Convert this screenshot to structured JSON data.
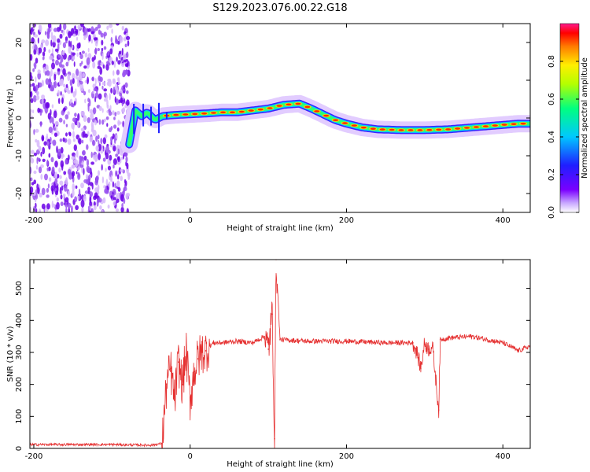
{
  "title": "S129.2023.076.00.22.G18",
  "colors": {
    "snr_line": "#e53030",
    "scatter": "#7a1fe0",
    "colormap": [
      "#ffffff",
      "#d9b8ff",
      "#7a00ff",
      "#1f1fff",
      "#00c8ff",
      "#00ff80",
      "#b4ff00",
      "#ffee00",
      "#ff7a00",
      "#ff0000",
      "#ff1a8c"
    ]
  },
  "chart_data": [
    {
      "type": "heatmap",
      "name": "spectrogram",
      "xlabel": "Height of straight line (km)",
      "ylabel": "Frequency (Hz)",
      "xlim": [
        -205,
        435
      ],
      "ylim": [
        -25,
        25
      ],
      "xticks": [
        "-200",
        "0",
        "200",
        "400"
      ],
      "yticks": [
        "20",
        "10",
        "0",
        "-10",
        "-20"
      ],
      "colorbar": {
        "label": "Normalized spectral amplitude",
        "range": [
          0,
          1
        ],
        "ticks": [
          "0.0",
          "0.2",
          "0.4",
          "0.6",
          "0.8"
        ]
      },
      "noise_region_x": [
        -205,
        -78
      ],
      "ridge": {
        "x": [
          -78,
          -70,
          -62,
          -55,
          -45,
          -35,
          -20,
          0,
          20,
          40,
          60,
          80,
          100,
          120,
          140,
          155,
          170,
          185,
          200,
          220,
          240,
          270,
          300,
          330,
          360,
          390,
          420,
          435
        ],
        "y": [
          -7,
          2,
          0.5,
          1.5,
          -0.5,
          0.5,
          0.8,
          1,
          1.2,
          1.5,
          1.5,
          2,
          2.5,
          3.5,
          3.8,
          2.5,
          1,
          -0.5,
          -1.5,
          -2.5,
          -3,
          -3.2,
          -3.2,
          -3,
          -2.5,
          -2,
          -1.5,
          -1.5
        ]
      }
    },
    {
      "type": "line",
      "name": "snr",
      "xlabel": "Height of straight line (km)",
      "ylabel": "SNR (10 * v/v)",
      "xlim": [
        -205,
        435
      ],
      "ylim": [
        0,
        590
      ],
      "xticks": [
        "-200",
        "0",
        "200",
        "400"
      ],
      "yticks": [
        "0",
        "100",
        "200",
        "300",
        "400",
        "500"
      ],
      "series": [
        {
          "x": [
            -205,
            -100,
            -50,
            -36,
            -30,
            -25,
            -20,
            -15,
            -10,
            -5,
            0,
            5,
            10,
            15,
            20,
            25,
            30,
            40,
            60,
            80,
            95,
            100,
            105,
            108,
            110,
            115,
            150,
            200,
            250,
            285,
            290,
            295,
            300,
            305,
            310,
            318,
            320,
            330,
            360,
            380,
            400,
            420,
            435
          ],
          "y": [
            12,
            12,
            10,
            15,
            200,
            250,
            150,
            270,
            200,
            300,
            150,
            240,
            280,
            300,
            305,
            320,
            330,
            330,
            335,
            330,
            350,
            310,
            420,
            30,
            590,
            340,
            335,
            335,
            330,
            330,
            300,
            250,
            330,
            310,
            320,
            120,
            340,
            345,
            350,
            340,
            330,
            305,
            320
          ]
        }
      ]
    }
  ]
}
